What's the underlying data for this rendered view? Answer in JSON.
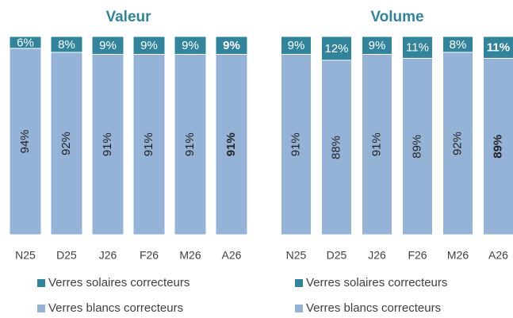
{
  "chart_data": [
    {
      "type": "stacked_bar",
      "title": "Valeur",
      "categories": [
        "N25",
        "D25",
        "J26",
        "F26",
        "M26",
        "A26"
      ],
      "ylim": [
        0,
        100
      ],
      "highlight_last": true,
      "series": [
        {
          "name": "Verres blancs correcteurs",
          "color": "#95b3d7",
          "values": [
            94,
            92,
            91,
            91,
            91,
            91
          ],
          "value_labels": [
            "94%",
            "92%",
            "91%",
            "91%",
            "91%",
            "91%"
          ]
        },
        {
          "name": "Verres solaires correcteurs",
          "color": "#31849b",
          "values": [
            6,
            8,
            9,
            9,
            9,
            9
          ],
          "value_labels": [
            "6%",
            "8%",
            "9%",
            "9%",
            "9%",
            "9%"
          ]
        }
      ]
    },
    {
      "type": "stacked_bar",
      "title": "Volume",
      "categories": [
        "N25",
        "D25",
        "J26",
        "F26",
        "M26",
        "A26"
      ],
      "ylim": [
        0,
        100
      ],
      "highlight_last": true,
      "series": [
        {
          "name": "Verres blancs correcteurs",
          "color": "#95b3d7",
          "values": [
            91,
            88,
            91,
            89,
            92,
            89
          ],
          "value_labels": [
            "91%",
            "88%",
            "91%",
            "89%",
            "92%",
            "89%"
          ]
        },
        {
          "name": "Verres solaires correcteurs",
          "color": "#31849b",
          "values": [
            9,
            12,
            9,
            11,
            8,
            11
          ],
          "value_labels": [
            "9%",
            "12%",
            "9%",
            "11%",
            "8%",
            "11%"
          ]
        }
      ]
    }
  ]
}
